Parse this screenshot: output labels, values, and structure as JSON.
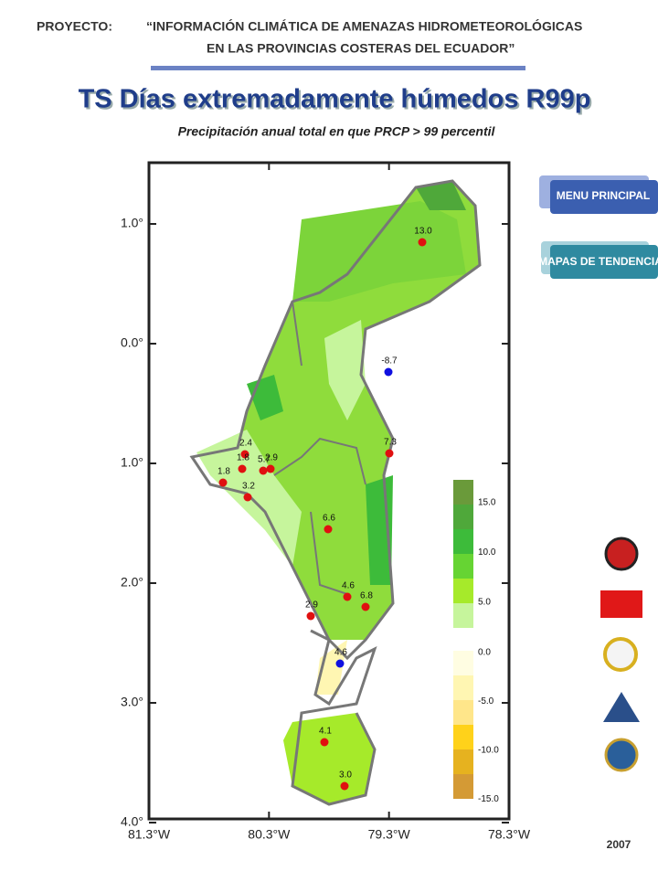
{
  "header": {
    "project": "PROYECTO:",
    "line1": "“INFORMACIÓN CLIMÁTICA DE AMENAZAS HIDROMETEOROLÓGICAS",
    "line2": "EN    LAS PROVINCIAS COSTERAS DEL ECUADOR”"
  },
  "title": "TS Días extremadamente húmedos R99p",
  "subtitle": "Precipitación anual total en que PRCP > 99 percentil",
  "buttons": [
    "MENU PRINCIPAL",
    "MAPAS DE TENDENCIAS"
  ],
  "year": "2007",
  "map": {
    "xticks": [
      {
        "value": 81.3,
        "label": "81.3°W"
      },
      {
        "value": 80.3,
        "label": "80.3°W"
      },
      {
        "value": 79.3,
        "label": "79.3°W"
      },
      {
        "value": 78.3,
        "label": "78.3°W"
      }
    ],
    "yticks": [
      {
        "value": 1,
        "label": "1.0°"
      },
      {
        "value": 0,
        "label": "0.0°"
      },
      {
        "value": -1,
        "label": "1.0°"
      },
      {
        "value": -2,
        "label": "2.0°"
      },
      {
        "value": -3,
        "label": "3.0°"
      },
      {
        "value": -4,
        "label": "4.0°"
      }
    ],
    "stations": [
      {
        "value": 13.0,
        "label": "13.0",
        "color": "#e01010"
      },
      {
        "value": -8.7,
        "label": "-8.7",
        "color": "#1010e0"
      },
      {
        "value": 7.3,
        "label": "7.3",
        "color": "#e01010"
      },
      {
        "value": 2.4,
        "label": "2.4",
        "color": "#e01010"
      },
      {
        "value": 1.8,
        "label": "1.8",
        "color": "#e01010"
      },
      {
        "value": 5.7,
        "label": "5.7",
        "color": "#e01010"
      },
      {
        "value": 2.9,
        "label": "2.9",
        "color": "#e01010"
      },
      {
        "value": 1.8,
        "label": "1.8",
        "color": "#e01010"
      },
      {
        "value": 3.2,
        "label": "3.2",
        "color": "#e01010"
      },
      {
        "value": 6.6,
        "label": "6.6",
        "color": "#e01010"
      },
      {
        "value": 4.6,
        "label": "4.6",
        "color": "#e01010"
      },
      {
        "value": 6.8,
        "label": "6.8",
        "color": "#e01010"
      },
      {
        "value": 2.9,
        "label": "2.9",
        "color": "#e01010"
      },
      {
        "value": 4.6,
        "label": "4.6",
        "color": "#1010e0"
      },
      {
        "value": 4.1,
        "label": "4.1",
        "color": "#e01010"
      },
      {
        "value": 3.0,
        "label": "3.0",
        "color": "#e01010"
      }
    ],
    "legend_pos": {
      "ticks": [
        {
          "value": 15,
          "label": "15.0"
        },
        {
          "value": 10,
          "label": "10.0"
        },
        {
          "value": 5,
          "label": "5.0"
        }
      ],
      "colors": [
        "#6a9a3a",
        "#4fa83a",
        "#3dbb3a",
        "#66d433",
        "#a6ea2a",
        "#c6f59c"
      ]
    },
    "legend_neg": {
      "ticks": [
        {
          "value": 0,
          "label": "0.0"
        },
        {
          "value": -5,
          "label": "-5.0"
        },
        {
          "value": -10,
          "label": "-10.0"
        },
        {
          "value": -15,
          "label": "-15.0"
        }
      ],
      "colors": [
        "#fffde2",
        "#fff6b2",
        "#ffe68a",
        "#ffd21a",
        "#e6b21f",
        "#d49a35"
      ]
    }
  }
}
